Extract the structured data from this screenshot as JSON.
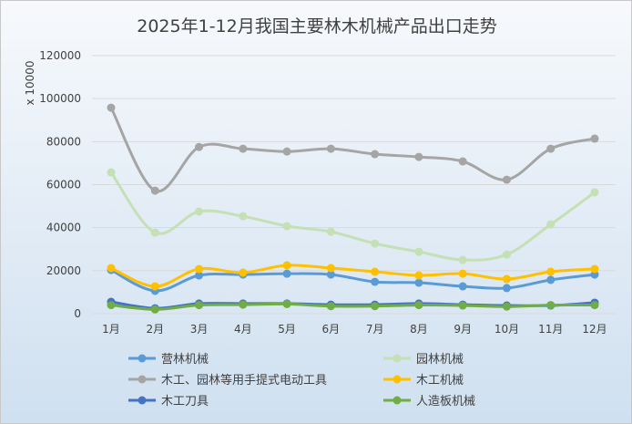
{
  "chart_data": {
    "type": "line",
    "title": "2025年1-12月我国主要林木机械产品出口走势",
    "ylabel": "x 10000",
    "xlabel": "",
    "ylim": [
      0,
      120000
    ],
    "yticks": [
      0,
      20000,
      40000,
      60000,
      80000,
      100000,
      120000
    ],
    "grid": true,
    "legend_position": "bottom",
    "categories": [
      "1月",
      "2月",
      "3月",
      "4月",
      "5月",
      "6月",
      "7月",
      "8月",
      "9月",
      "10月",
      "11月",
      "12月"
    ],
    "series": [
      {
        "name": "营林机械",
        "color": "#5b9bd5",
        "values": [
          20300,
          10600,
          17800,
          18200,
          18600,
          18200,
          14800,
          14400,
          12700,
          11900,
          15700,
          18200
        ]
      },
      {
        "name": "园林机械",
        "color": "#c5e0b4",
        "values": [
          65700,
          37700,
          47500,
          45300,
          40700,
          38100,
          32600,
          28800,
          25000,
          27500,
          41500,
          56400
        ]
      },
      {
        "name": "木工、园林等用手提式电动工具",
        "color": "#a5a5a5",
        "values": [
          95800,
          57200,
          77500,
          76700,
          75400,
          76700,
          74200,
          72900,
          70800,
          62300,
          76700,
          81400
        ]
      },
      {
        "name": "木工机械",
        "color": "#ffc000",
        "values": [
          21200,
          12700,
          20800,
          19100,
          22500,
          21200,
          19500,
          17800,
          18600,
          16100,
          19500,
          20800
        ]
      },
      {
        "name": "木工刀具",
        "color": "#4472c4",
        "values": [
          5500,
          2500,
          4700,
          4700,
          4700,
          4200,
          4200,
          4700,
          4200,
          3800,
          3800,
          5100
        ]
      },
      {
        "name": "人造板机械",
        "color": "#70ad47",
        "values": [
          4000,
          2000,
          4000,
          4200,
          4500,
          3500,
          3500,
          4000,
          3800,
          3300,
          4000,
          4000
        ]
      }
    ]
  }
}
